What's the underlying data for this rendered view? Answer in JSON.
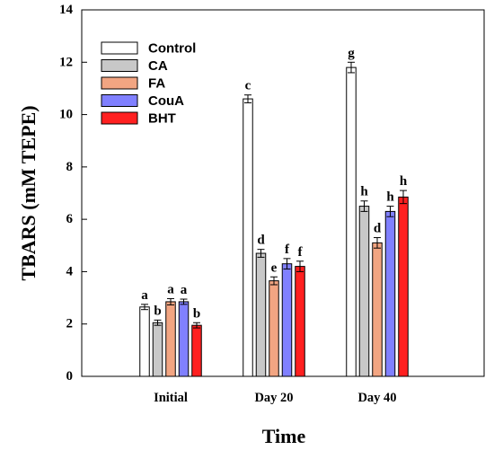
{
  "chart_data": {
    "type": "bar",
    "title": "",
    "xlabel": "Time",
    "ylabel": "TBARS (mM TEPE)",
    "ylim": [
      0,
      14
    ],
    "yticks": [
      0,
      2,
      4,
      6,
      8,
      10,
      12,
      14
    ],
    "categories": [
      "Initial",
      "Day 20",
      "Day 40"
    ],
    "legend_position": "top-left",
    "grid": false,
    "series": [
      {
        "name": "Control",
        "color": "#ffffff",
        "values": [
          2.65,
          10.6,
          11.8
        ],
        "errors": [
          0.1,
          0.15,
          0.2
        ],
        "labels": [
          "a",
          "c",
          "g"
        ]
      },
      {
        "name": "CA",
        "color": "#c8c8c8",
        "values": [
          2.05,
          4.7,
          6.5
        ],
        "errors": [
          0.1,
          0.15,
          0.2
        ],
        "labels": [
          "b",
          "d",
          "h"
        ]
      },
      {
        "name": "FA",
        "color": "#f2a582",
        "values": [
          2.85,
          3.65,
          5.1
        ],
        "errors": [
          0.12,
          0.15,
          0.2
        ],
        "labels": [
          "a",
          "e",
          "d"
        ]
      },
      {
        "name": "CouA",
        "color": "#8080ff",
        "values": [
          2.85,
          4.3,
          6.3
        ],
        "errors": [
          0.1,
          0.2,
          0.2
        ],
        "labels": [
          "a",
          "f",
          "h"
        ]
      },
      {
        "name": "BHT",
        "color": "#ff2020",
        "values": [
          1.95,
          4.2,
          6.85
        ],
        "errors": [
          0.1,
          0.2,
          0.25
        ],
        "labels": [
          "b",
          "f",
          "h"
        ]
      }
    ]
  }
}
